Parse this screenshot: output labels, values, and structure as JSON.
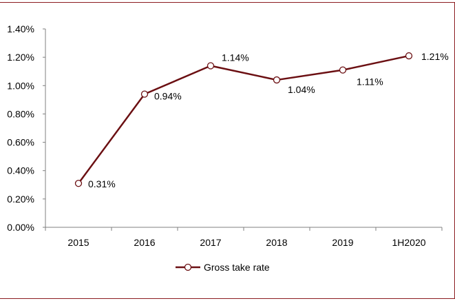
{
  "chart_data": {
    "type": "line",
    "title": "",
    "xlabel": "",
    "ylabel": "",
    "categories": [
      "2015",
      "2016",
      "2017",
      "2018",
      "2019",
      "1H2020"
    ],
    "series": [
      {
        "name": "Gross take rate",
        "values": [
          0.31,
          0.94,
          1.14,
          1.04,
          1.11,
          1.21
        ],
        "labels": [
          "0.31%",
          "0.94%",
          "1.14%",
          "1.04%",
          "1.11%",
          "1.21%"
        ]
      }
    ],
    "yticks": [
      "0.00%",
      "0.20%",
      "0.40%",
      "0.60%",
      "0.80%",
      "1.00%",
      "1.20%",
      "1.40%"
    ],
    "ylim": [
      0,
      1.4
    ],
    "legend": "bottom-center",
    "grid": false
  },
  "colors": {
    "series": "#6b0f12",
    "frame": "#8b1a1f",
    "axis": "#7f7f7f",
    "marker_fill": "#ffffff"
  }
}
